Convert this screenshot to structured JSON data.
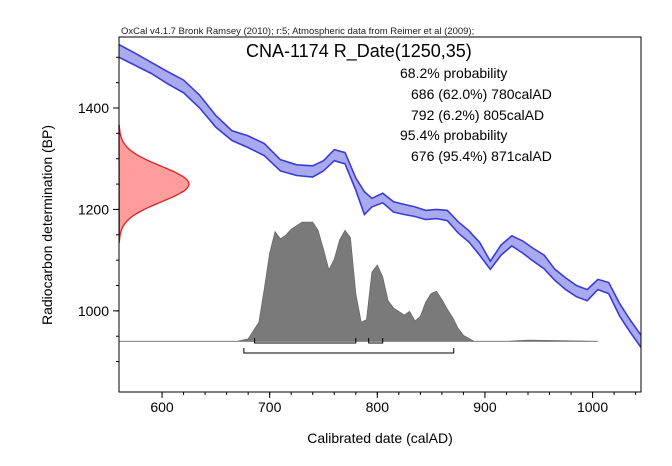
{
  "chart_data": {
    "type": "area",
    "header": "OxCal v4.1.7 Bronk Ramsey (2010); r:5; Atmospheric data from Reimer et al (2009);",
    "title": "CNA-1174 R_Date(1250,35)",
    "xlabel": "Calibrated date (calAD)",
    "ylabel": "Radiocarbon determination (BP)",
    "xlim": [
      560,
      1045
    ],
    "ylim": [
      840,
      1540
    ],
    "x_ticks": [
      600,
      700,
      800,
      900,
      1000
    ],
    "y_ticks": [
      1000,
      1200,
      1400
    ],
    "annotations": [
      "68.2% probability",
      "686 (62.0%) 780calAD",
      "792 (6.2%) 805calAD",
      "95.4% probability",
      "676 (95.4%) 871calAD"
    ],
    "calibration_curve": {
      "color": "#3b3bd6",
      "fill": "#a9a9f0",
      "x": [
        560,
        575,
        590,
        605,
        620,
        635,
        650,
        665,
        680,
        695,
        710,
        725,
        740,
        750,
        760,
        770,
        780,
        788,
        795,
        805,
        815,
        825,
        835,
        845,
        855,
        865,
        875,
        885,
        895,
        905,
        915,
        925,
        935,
        945,
        955,
        965,
        975,
        985,
        995,
        1005,
        1015,
        1025,
        1035,
        1045
      ],
      "upper": [
        1525,
        1508,
        1490,
        1472,
        1455,
        1425,
        1385,
        1355,
        1345,
        1330,
        1298,
        1288,
        1286,
        1296,
        1318,
        1312,
        1262,
        1235,
        1222,
        1232,
        1215,
        1210,
        1205,
        1198,
        1200,
        1198,
        1176,
        1158,
        1135,
        1098,
        1130,
        1148,
        1138,
        1123,
        1110,
        1082,
        1065,
        1050,
        1042,
        1062,
        1056,
        1015,
        982,
        952
      ],
      "lower": [
        1500,
        1484,
        1468,
        1448,
        1430,
        1400,
        1362,
        1336,
        1322,
        1306,
        1276,
        1267,
        1264,
        1276,
        1296,
        1290,
        1238,
        1190,
        1205,
        1213,
        1195,
        1190,
        1186,
        1180,
        1182,
        1178,
        1154,
        1136,
        1110,
        1082,
        1110,
        1128,
        1114,
        1098,
        1083,
        1060,
        1042,
        1028,
        1020,
        1042,
        1034,
        990,
        958,
        928
      ]
    },
    "radiocarbon_date": {
      "mean_bp": 1250,
      "sd": 35,
      "color": "#e02020",
      "fill": "#ff9c9c",
      "peak_calAD": 625
    },
    "posterior_distribution": {
      "color": "#7a7a7a",
      "x": [
        560,
        640,
        670,
        680,
        690,
        695,
        700,
        705,
        710,
        715,
        720,
        730,
        740,
        745,
        750,
        755,
        760,
        765,
        770,
        775,
        780,
        785,
        790,
        795,
        800,
        805,
        810,
        815,
        820,
        825,
        830,
        835,
        840,
        845,
        850,
        855,
        860,
        865,
        870,
        875,
        880,
        890,
        920,
        940,
        1005
      ],
      "y": [
        0,
        0,
        0,
        0.02,
        0.16,
        0.44,
        0.74,
        0.92,
        0.86,
        0.89,
        0.94,
        1.0,
        1.0,
        0.93,
        0.77,
        0.6,
        0.69,
        0.85,
        0.93,
        0.87,
        0.4,
        0.16,
        0.18,
        0.58,
        0.64,
        0.54,
        0.34,
        0.28,
        0.25,
        0.22,
        0.25,
        0.17,
        0.21,
        0.33,
        0.4,
        0.42,
        0.35,
        0.27,
        0.2,
        0.11,
        0.05,
        0,
        0,
        0.01,
        0
      ],
      "baseline_bp": 940,
      "peak_height_bp": 235
    },
    "ranges": [
      {
        "level": "68.2%",
        "from": 686,
        "to": 780
      },
      {
        "level": "68.2%",
        "from": 792,
        "to": 805
      },
      {
        "level": "95.4%",
        "from": 676,
        "to": 871
      }
    ]
  }
}
